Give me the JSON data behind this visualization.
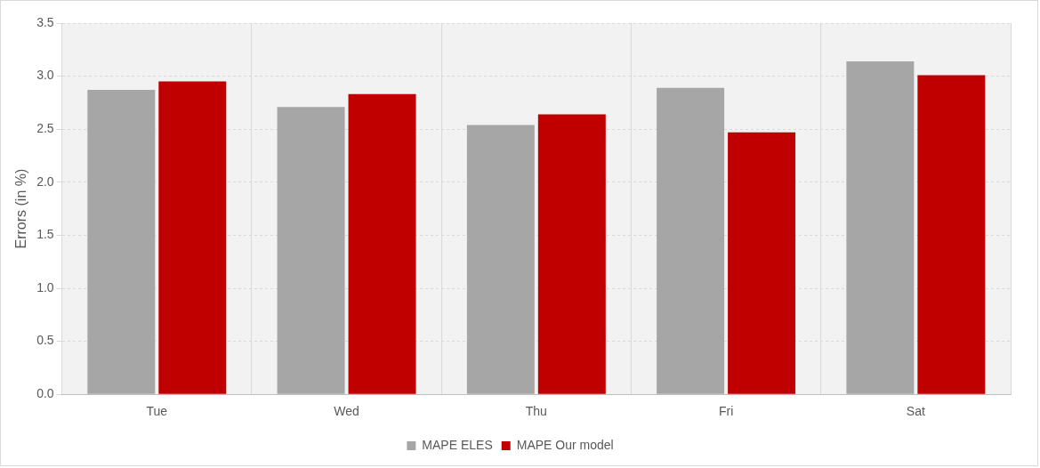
{
  "chart_data": {
    "type": "bar",
    "ylabel": "Errors (in %)",
    "categories": [
      "Tue",
      "Wed",
      "Thu",
      "Fri",
      "Sat"
    ],
    "series": [
      {
        "name": "MAPE ELES",
        "color": "#a6a6a6",
        "values": [
          2.87,
          2.71,
          2.54,
          2.89,
          3.14
        ]
      },
      {
        "name": "MAPE Our model",
        "color": "#c00000",
        "values": [
          2.95,
          2.83,
          2.64,
          2.47,
          3.01
        ]
      }
    ],
    "ylim": [
      0,
      3.5
    ],
    "yticks": [
      {
        "value": 0,
        "label": "0.0"
      },
      {
        "value": 0.5,
        "label": "0.5"
      },
      {
        "value": 1,
        "label": "1.0"
      },
      {
        "value": 1.5,
        "label": "1.5"
      },
      {
        "value": 2,
        "label": "2.0"
      },
      {
        "value": 2.5,
        "label": "2.5"
      },
      {
        "value": 3,
        "label": "3.0"
      },
      {
        "value": 3.5,
        "label": "3.5"
      }
    ],
    "grid": true,
    "legend": "bottom"
  }
}
